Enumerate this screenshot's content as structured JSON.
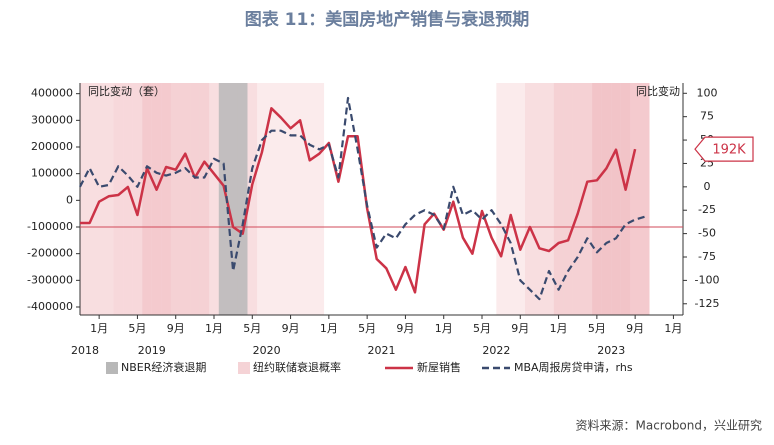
{
  "chart_data": {
    "type": "line",
    "title": "图表 11：美国房地产销售与衰退预期",
    "y_label": "同比变动（套）",
    "y2_label": "同比变动",
    "x": [
      "2018-11",
      "2018-12",
      "2019-01",
      "2019-02",
      "2019-03",
      "2019-04",
      "2019-05",
      "2019-06",
      "2019-07",
      "2019-08",
      "2019-09",
      "2019-10",
      "2019-11",
      "2019-12",
      "2020-01",
      "2020-02",
      "2020-03",
      "2020-04",
      "2020-05",
      "2020-06",
      "2020-07",
      "2020-08",
      "2020-09",
      "2020-10",
      "2020-11",
      "2020-12",
      "2021-01",
      "2021-02",
      "2021-03",
      "2021-04",
      "2021-05",
      "2021-06",
      "2021-07",
      "2021-08",
      "2021-09",
      "2021-10",
      "2021-11",
      "2021-12",
      "2022-01",
      "2022-02",
      "2022-03",
      "2022-04",
      "2022-05",
      "2022-06",
      "2022-07",
      "2022-08",
      "2022-09",
      "2022-10",
      "2022-11",
      "2022-12",
      "2023-01",
      "2023-02",
      "2023-03",
      "2023-04",
      "2023-05",
      "2023-06",
      "2023-07",
      "2023-08",
      "2023-09",
      "2023-10"
    ],
    "xlim": [
      "2018-11",
      "2024-02"
    ],
    "xticks": [
      {
        "value": "2019-01",
        "label": "1月"
      },
      {
        "value": "2019-05",
        "label": "5月"
      },
      {
        "value": "2019-09",
        "label": "9月"
      },
      {
        "value": "2020-01",
        "label": "1月"
      },
      {
        "value": "2020-05",
        "label": "5月"
      },
      {
        "value": "2020-09",
        "label": "9月"
      },
      {
        "value": "2021-01",
        "label": "1月"
      },
      {
        "value": "2021-05",
        "label": "5月"
      },
      {
        "value": "2021-09",
        "label": "9月"
      },
      {
        "value": "2022-01",
        "label": "1月"
      },
      {
        "value": "2022-05",
        "label": "5月"
      },
      {
        "value": "2022-09",
        "label": "9月"
      },
      {
        "value": "2023-01",
        "label": "1月"
      },
      {
        "value": "2023-05",
        "label": "5月"
      },
      {
        "value": "2023-09",
        "label": "9月"
      },
      {
        "value": "2024-01",
        "label": "1月"
      }
    ],
    "x_years": [
      "2018",
      "2019",
      "2020",
      "2021",
      "2022",
      "2023"
    ],
    "ylim": [
      -430000,
      440000
    ],
    "yticks": [
      400000,
      300000,
      200000,
      100000,
      0,
      -100000,
      -200000,
      -300000,
      -400000
    ],
    "y2lim": [
      -137,
      111
    ],
    "y2ticks": [
      100,
      75,
      50,
      25,
      0,
      -25,
      -50,
      -75,
      -100,
      -125
    ],
    "series": [
      {
        "name": "新屋销售",
        "color": "#cc3347",
        "values": [
          -85000,
          -85000,
          -5000,
          15000,
          20000,
          50000,
          -55000,
          120000,
          40000,
          125000,
          115000,
          175000,
          85000,
          145000,
          100000,
          55000,
          -100000,
          -125000,
          60000,
          180000,
          345000,
          310000,
          270000,
          300000,
          150000,
          175000,
          215000,
          70000,
          240000,
          240000,
          -30000,
          -220000,
          -255000,
          -335000,
          -250000,
          -345000,
          -90000,
          -50000,
          -110000,
          -5000,
          -140000,
          -200000,
          -40000,
          -140000,
          -210000,
          -55000,
          -185000,
          -100000,
          -180000,
          -190000,
          -160000,
          -150000,
          -50000,
          70000,
          75000,
          120000,
          190000,
          40000,
          192000,
          null
        ],
        "value_labels": [
          null,
          null,
          null,
          null,
          null,
          null,
          null,
          null,
          null,
          null,
          null,
          null,
          null,
          null,
          null,
          null,
          null,
          null,
          null,
          null,
          null,
          null,
          null,
          null,
          null,
          null,
          null,
          null,
          null,
          null,
          null,
          null,
          null,
          null,
          null,
          null,
          null,
          null,
          null,
          null,
          null,
          null,
          null,
          null,
          null,
          null,
          null,
          null,
          null,
          null,
          null,
          null,
          null,
          null,
          null,
          null,
          null,
          null,
          "192K",
          null
        ]
      },
      {
        "name": "MBA周报房贷申请，rhs",
        "color": "#3a4a6e",
        "dash": true,
        "axis": "y2",
        "values": [
          0,
          20,
          0,
          2,
          22,
          12,
          0,
          22,
          15,
          12,
          15,
          20,
          10,
          10,
          30,
          25,
          -90,
          -40,
          20,
          50,
          60,
          60,
          55,
          55,
          45,
          40,
          45,
          10,
          95,
          40,
          -20,
          -65,
          -50,
          -55,
          -40,
          -30,
          -25,
          -30,
          -45,
          0,
          -30,
          -25,
          -35,
          -25,
          -40,
          -60,
          -100,
          -110,
          -120,
          -90,
          -110,
          -90,
          -75,
          -55,
          -70,
          -60,
          -55,
          -40,
          -35,
          -32
        ]
      }
    ],
    "nber": {
      "name": "NBER经济衰退期",
      "color": "#b8b8b8",
      "start": "2020-02",
      "end": "2020-04"
    },
    "recession_probability": {
      "name": "纽约联储衰退概率",
      "color": "#d9505c",
      "values": [
        25,
        25,
        25,
        25,
        30,
        30,
        30,
        40,
        40,
        40,
        35,
        35,
        35,
        35,
        25,
        25,
        25,
        25,
        25,
        15,
        15,
        15,
        15,
        15,
        15,
        15,
        0,
        0,
        0,
        0,
        0,
        0,
        0,
        0,
        0,
        0,
        0,
        0,
        0,
        0,
        0,
        0,
        0,
        0,
        15,
        15,
        15,
        25,
        25,
        25,
        35,
        35,
        35,
        35,
        45,
        45,
        45,
        45,
        40,
        40
      ]
    },
    "reference_line": -100000,
    "source": "资料来源：Macrobond，兴业研究"
  }
}
